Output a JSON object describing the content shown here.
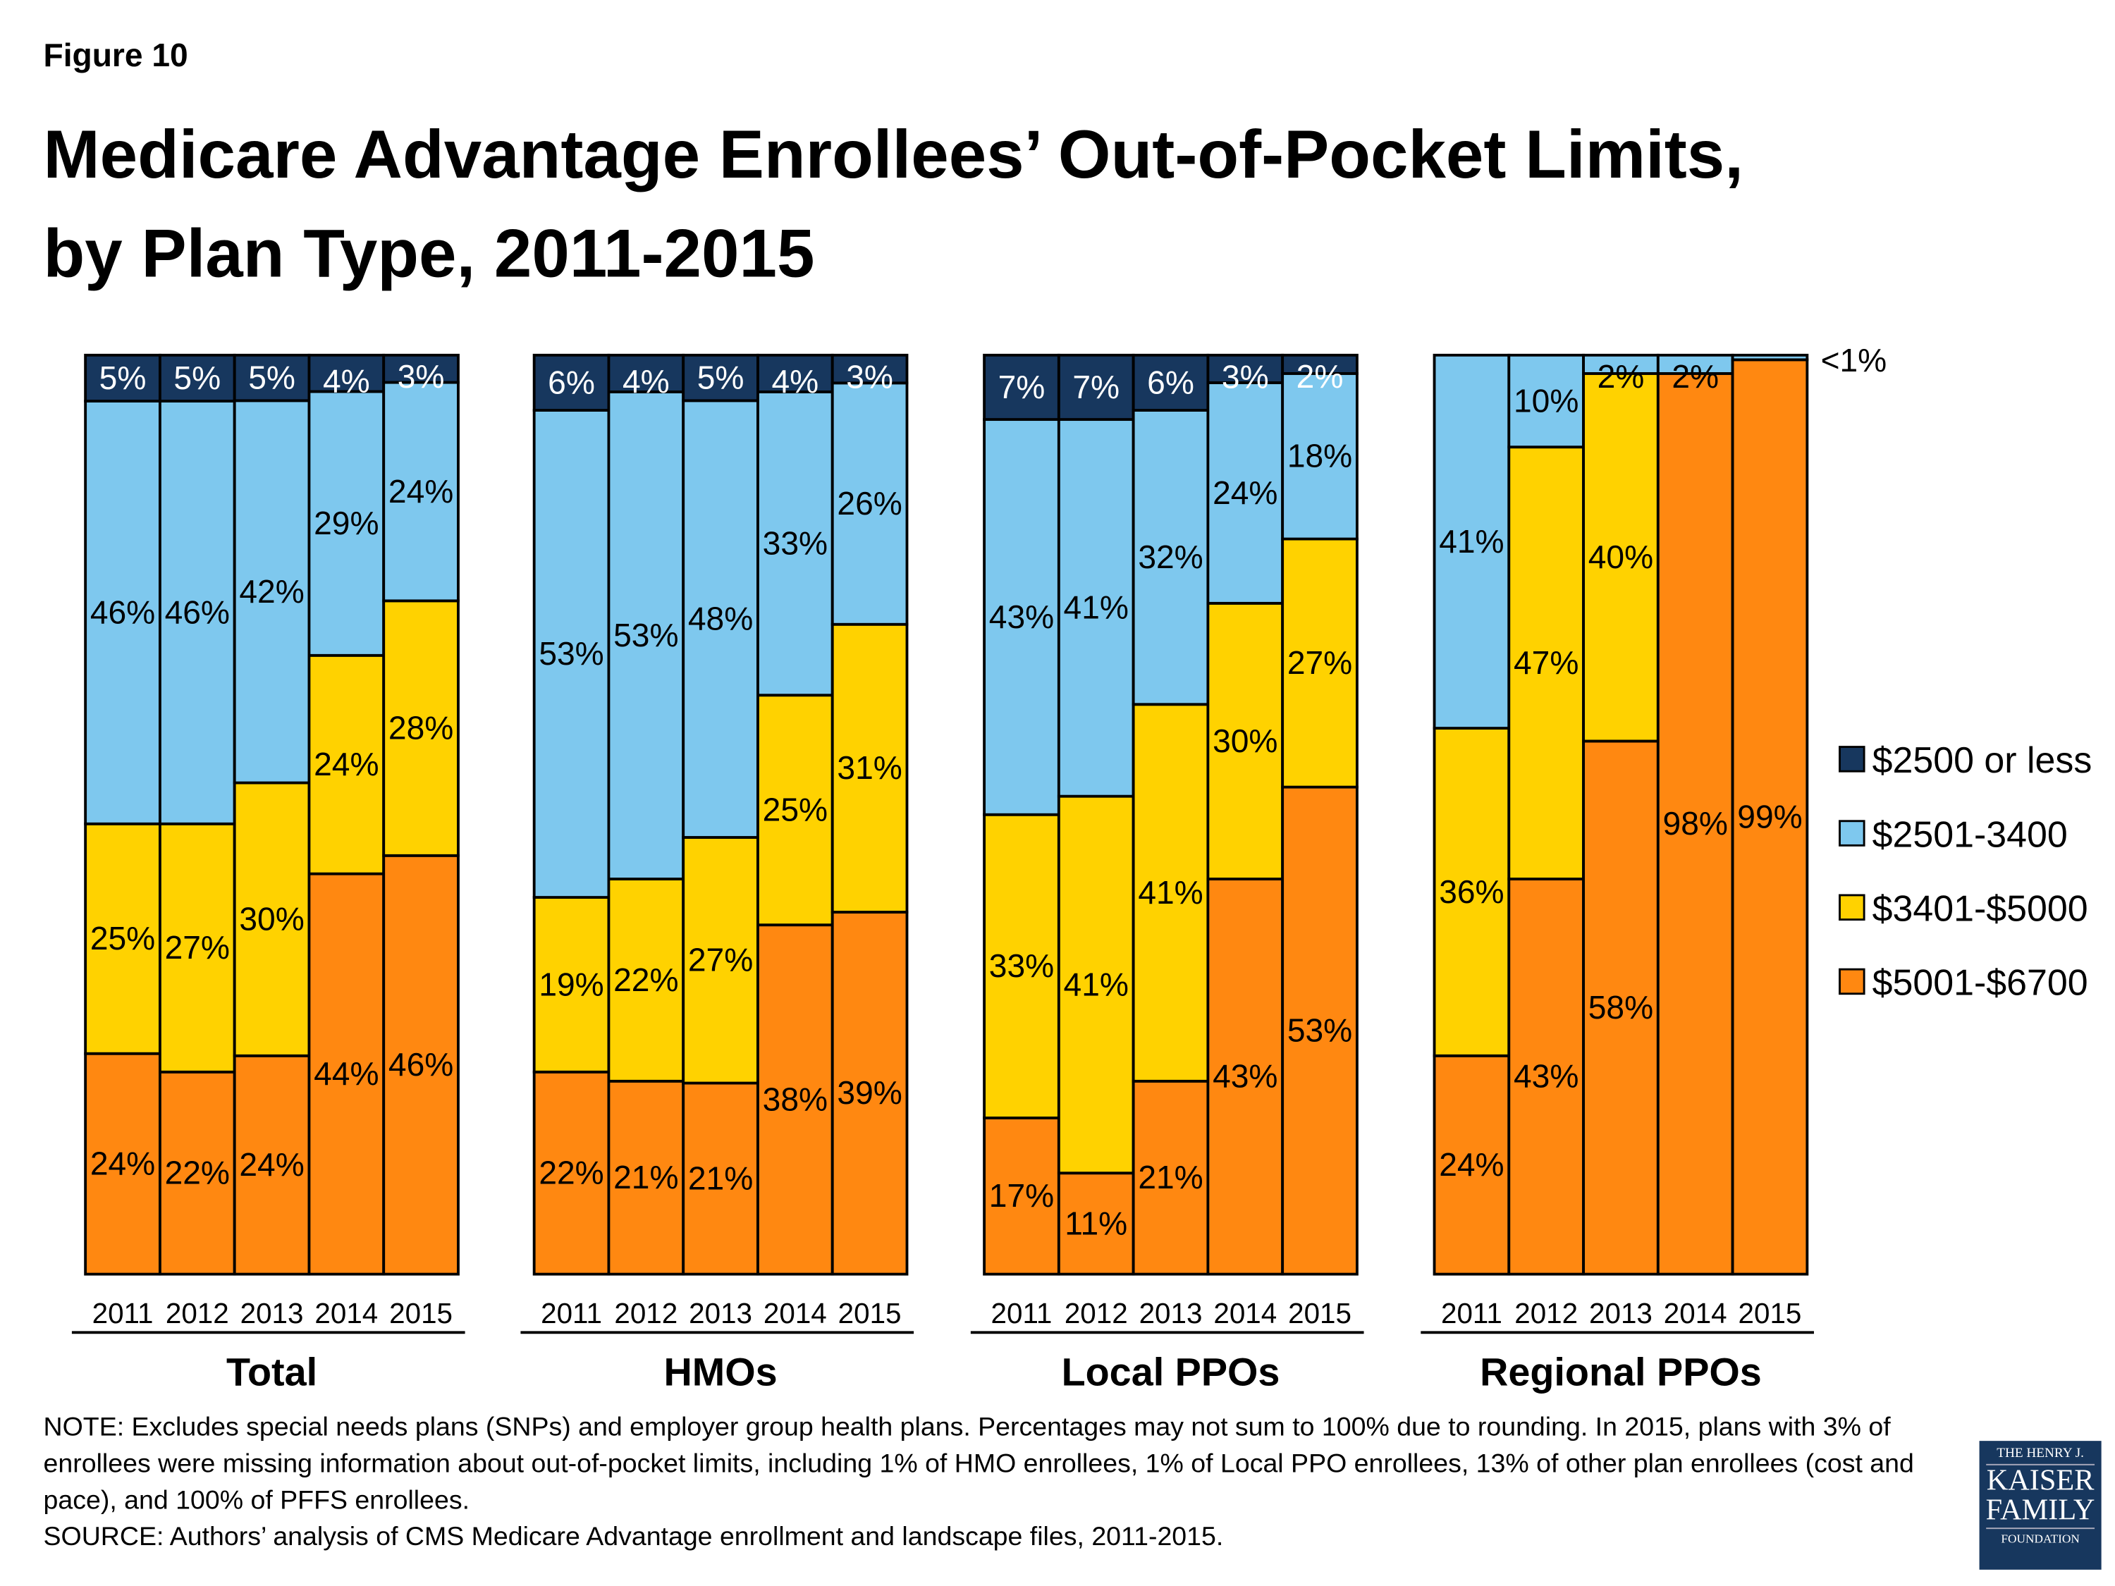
{
  "figure_label": "Figure 10",
  "title_line1": "Medicare Advantage Enrollees’ Out-of-Pocket Limits,",
  "title_line2": "by Plan Type, 2011-2015",
  "note": "NOTE: Excludes special needs plans (SNPs) and employer group health plans.  Percentages may not sum to 100% due to rounding. In 2015, plans with 3% of enrollees were missing information about out-of-pocket limits, including 1% of HMO enrollees, 1% of Local PPO enrollees, 13% of other plan enrollees (cost and pace), and 100% of PFFS enrollees.",
  "source": "SOURCE: Authors’ analysis of CMS Medicare Advantage enrollment and landscape files, 2011-2015.",
  "logo": {
    "line1": "THE HENRY J.",
    "line2": "KAISER",
    "line3": "FAMILY",
    "line4": "FOUNDATION"
  },
  "chart_data": {
    "type": "bar",
    "stacked": "100%",
    "legend_position": "right",
    "grid": false,
    "series": [
      {
        "name": "$5001-$6700",
        "color": "#FF8811"
      },
      {
        "name": "$3401-$5000",
        "color": "#FFD200"
      },
      {
        "name": "$2501-3400",
        "color": "#7EC8EE"
      },
      {
        "name": "$2500 or less",
        "color": "#17375E"
      }
    ],
    "legend_order": [
      "$2500 or less",
      "$2501-3400",
      "$3401-$5000",
      "$5001-$6700"
    ],
    "groups": [
      {
        "name": "Total",
        "categories": [
          "2011",
          "2012",
          "2013",
          "2014",
          "2015"
        ],
        "values": [
          [
            24,
            25,
            46,
            5
          ],
          [
            22,
            27,
            46,
            5
          ],
          [
            24,
            30,
            42,
            5
          ],
          [
            44,
            24,
            29,
            4
          ],
          [
            46,
            28,
            24,
            3
          ]
        ]
      },
      {
        "name": "HMOs",
        "categories": [
          "2011",
          "2012",
          "2013",
          "2014",
          "2015"
        ],
        "values": [
          [
            22,
            19,
            53,
            6
          ],
          [
            21,
            22,
            53,
            4
          ],
          [
            21,
            27,
            48,
            5
          ],
          [
            38,
            25,
            33,
            4
          ],
          [
            39,
            31,
            26,
            3
          ]
        ]
      },
      {
        "name": "Local PPOs",
        "categories": [
          "2011",
          "2012",
          "2013",
          "2014",
          "2015"
        ],
        "values": [
          [
            17,
            33,
            43,
            7
          ],
          [
            11,
            41,
            41,
            7
          ],
          [
            21,
            41,
            32,
            6
          ],
          [
            43,
            30,
            24,
            3
          ],
          [
            53,
            27,
            18,
            2
          ]
        ]
      },
      {
        "name": "Regional PPOs",
        "categories": [
          "2011",
          "2012",
          "2013",
          "2014",
          "2015"
        ],
        "values": [
          [
            24,
            36,
            41,
            0
          ],
          [
            43,
            47,
            10,
            0
          ],
          [
            58,
            40,
            2,
            0
          ],
          [
            98,
            0,
            2,
            0
          ],
          [
            99,
            0,
            0.5,
            0
          ]
        ]
      }
    ],
    "annotations": [
      {
        "group": "Regional PPOs",
        "category": "2015",
        "series": "$2501-3400",
        "text": "<1%"
      }
    ]
  }
}
